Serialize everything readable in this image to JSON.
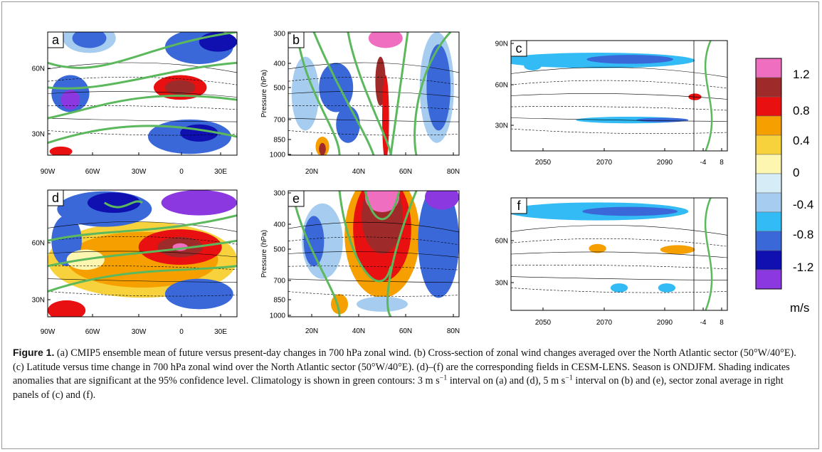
{
  "panels": [
    {
      "label": "a",
      "y_ticks": [
        "60N",
        "30N"
      ],
      "x_ticks": [
        "90W",
        "60W",
        "30W",
        "0",
        "30E"
      ]
    },
    {
      "label": "b",
      "y_axis_label": "Pressure (hPa)",
      "y_ticks": [
        "300",
        "400",
        "500",
        "700",
        "850",
        "1000"
      ],
      "x_ticks": [
        "20N",
        "40N",
        "60N",
        "80N"
      ]
    },
    {
      "label": "c",
      "y_ticks": [
        "90N",
        "60N",
        "30N"
      ],
      "x_ticks": [
        "2050",
        "2070",
        "2090",
        "-4",
        "8"
      ]
    },
    {
      "label": "d",
      "y_ticks": [
        "60N",
        "30N"
      ],
      "x_ticks": [
        "90W",
        "60W",
        "30W",
        "0",
        "30E"
      ]
    },
    {
      "label": "e",
      "y_axis_label": "Pressure (hPa)",
      "y_ticks": [
        "300",
        "400",
        "500",
        "700",
        "850",
        "1000"
      ],
      "x_ticks": [
        "20N",
        "40N",
        "60N",
        "80N"
      ]
    },
    {
      "label": "f",
      "y_ticks": [
        "60N",
        "30N"
      ],
      "x_ticks": [
        "2050",
        "2070",
        "2090",
        "-4",
        "8"
      ]
    }
  ],
  "colorbar": {
    "labels": [
      "1.2",
      "0.8",
      "0.4",
      "0",
      "-0.4",
      "-0.8",
      "-1.2"
    ],
    "unit": "m/s"
  },
  "caption": {
    "label": "Figure 1.",
    "text1": " (a) CMIP5 ensemble mean of future versus present-day changes in 700 hPa zonal wind. (b) Cross-section of zonal wind changes averaged over the North Atlantic sector (50°W/40°E). (c) Latitude versus time change in 700 hPa zonal wind over the North Atlantic sector (50°W/40°E). (d)–(f) are the corresponding fields in CESM-LENS. Season is ONDJFM. Shading indicates anomalies that are significant at the 95% confidence level. Climatology is shown in green contours: 3 m s",
    "sup1": "−1",
    "text2": " interval on (a) and (d), 5 m s",
    "sup2": "−1",
    "text3": " interval on (b) and (e), sector zonal average in right panels of (c) and (f)."
  }
}
